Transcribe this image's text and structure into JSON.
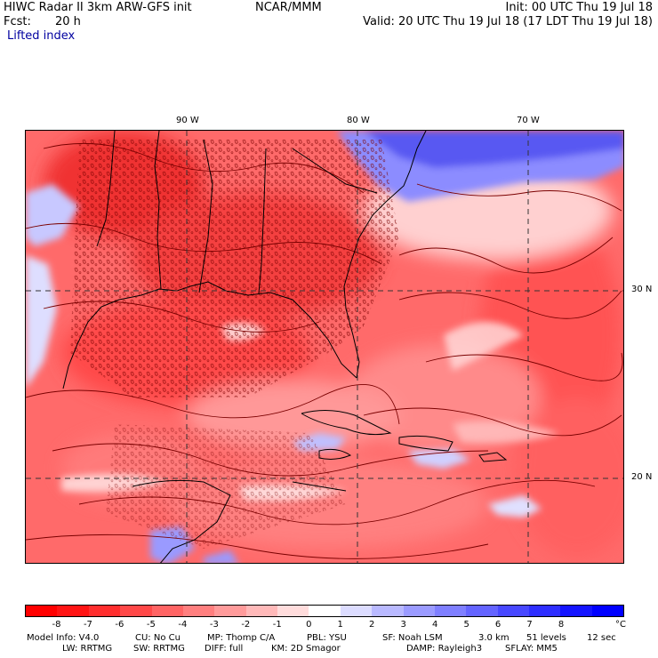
{
  "header": {
    "title_left": "HIWC Radar II 3km ARW-GFS init",
    "org": "NCAR/MMM",
    "init": "Init: 00 UTC Thu 19 Jul 18",
    "fcst_label": "Fcst:",
    "fcst_value": "20 h",
    "valid": "Valid: 20 UTC Thu 19 Jul 18 (17 LDT Thu 19 Jul 18)",
    "field": "Lifted index"
  },
  "map": {
    "lon_labels": [
      "90 W",
      "80 W",
      "70 W"
    ],
    "lat_labels": [
      "30 N",
      "20 N"
    ],
    "colors": {
      "land_border": "#000000",
      "contour": "#7a0000",
      "grid": "#333333"
    }
  },
  "legend": {
    "unit": "°C",
    "tick_labels": [
      "-8",
      "-7",
      "-6",
      "-5",
      "-4",
      "-3",
      "-2",
      "-1",
      "0",
      "1",
      "2",
      "3",
      "4",
      "5",
      "6",
      "7",
      "8"
    ],
    "swatches": [
      "#ff0000",
      "#ff1414",
      "#ff2e2e",
      "#ff4848",
      "#ff6464",
      "#ff7f7f",
      "#ff9b9b",
      "#ffb9b9",
      "#ffdcdc",
      "#ffffff",
      "#dcdcff",
      "#b9b9ff",
      "#9b9bff",
      "#7f7fff",
      "#6464ff",
      "#4848ff",
      "#2e2eff",
      "#1414ff",
      "#0000ff"
    ]
  },
  "footer": {
    "line1": [
      "Model Info: V4.0",
      "CU: No Cu",
      "MP: Thomp C/A",
      "PBL: YSU",
      "SF: Noah LSM",
      "3.0 km",
      "51 levels",
      "12 sec"
    ],
    "line2": [
      "LW: RRTMG",
      "SW: RRTMG",
      "DIFF: full",
      "KM: 2D Smagor",
      "DAMP: Rayleigh3",
      "SFLAY: MM5"
    ]
  }
}
